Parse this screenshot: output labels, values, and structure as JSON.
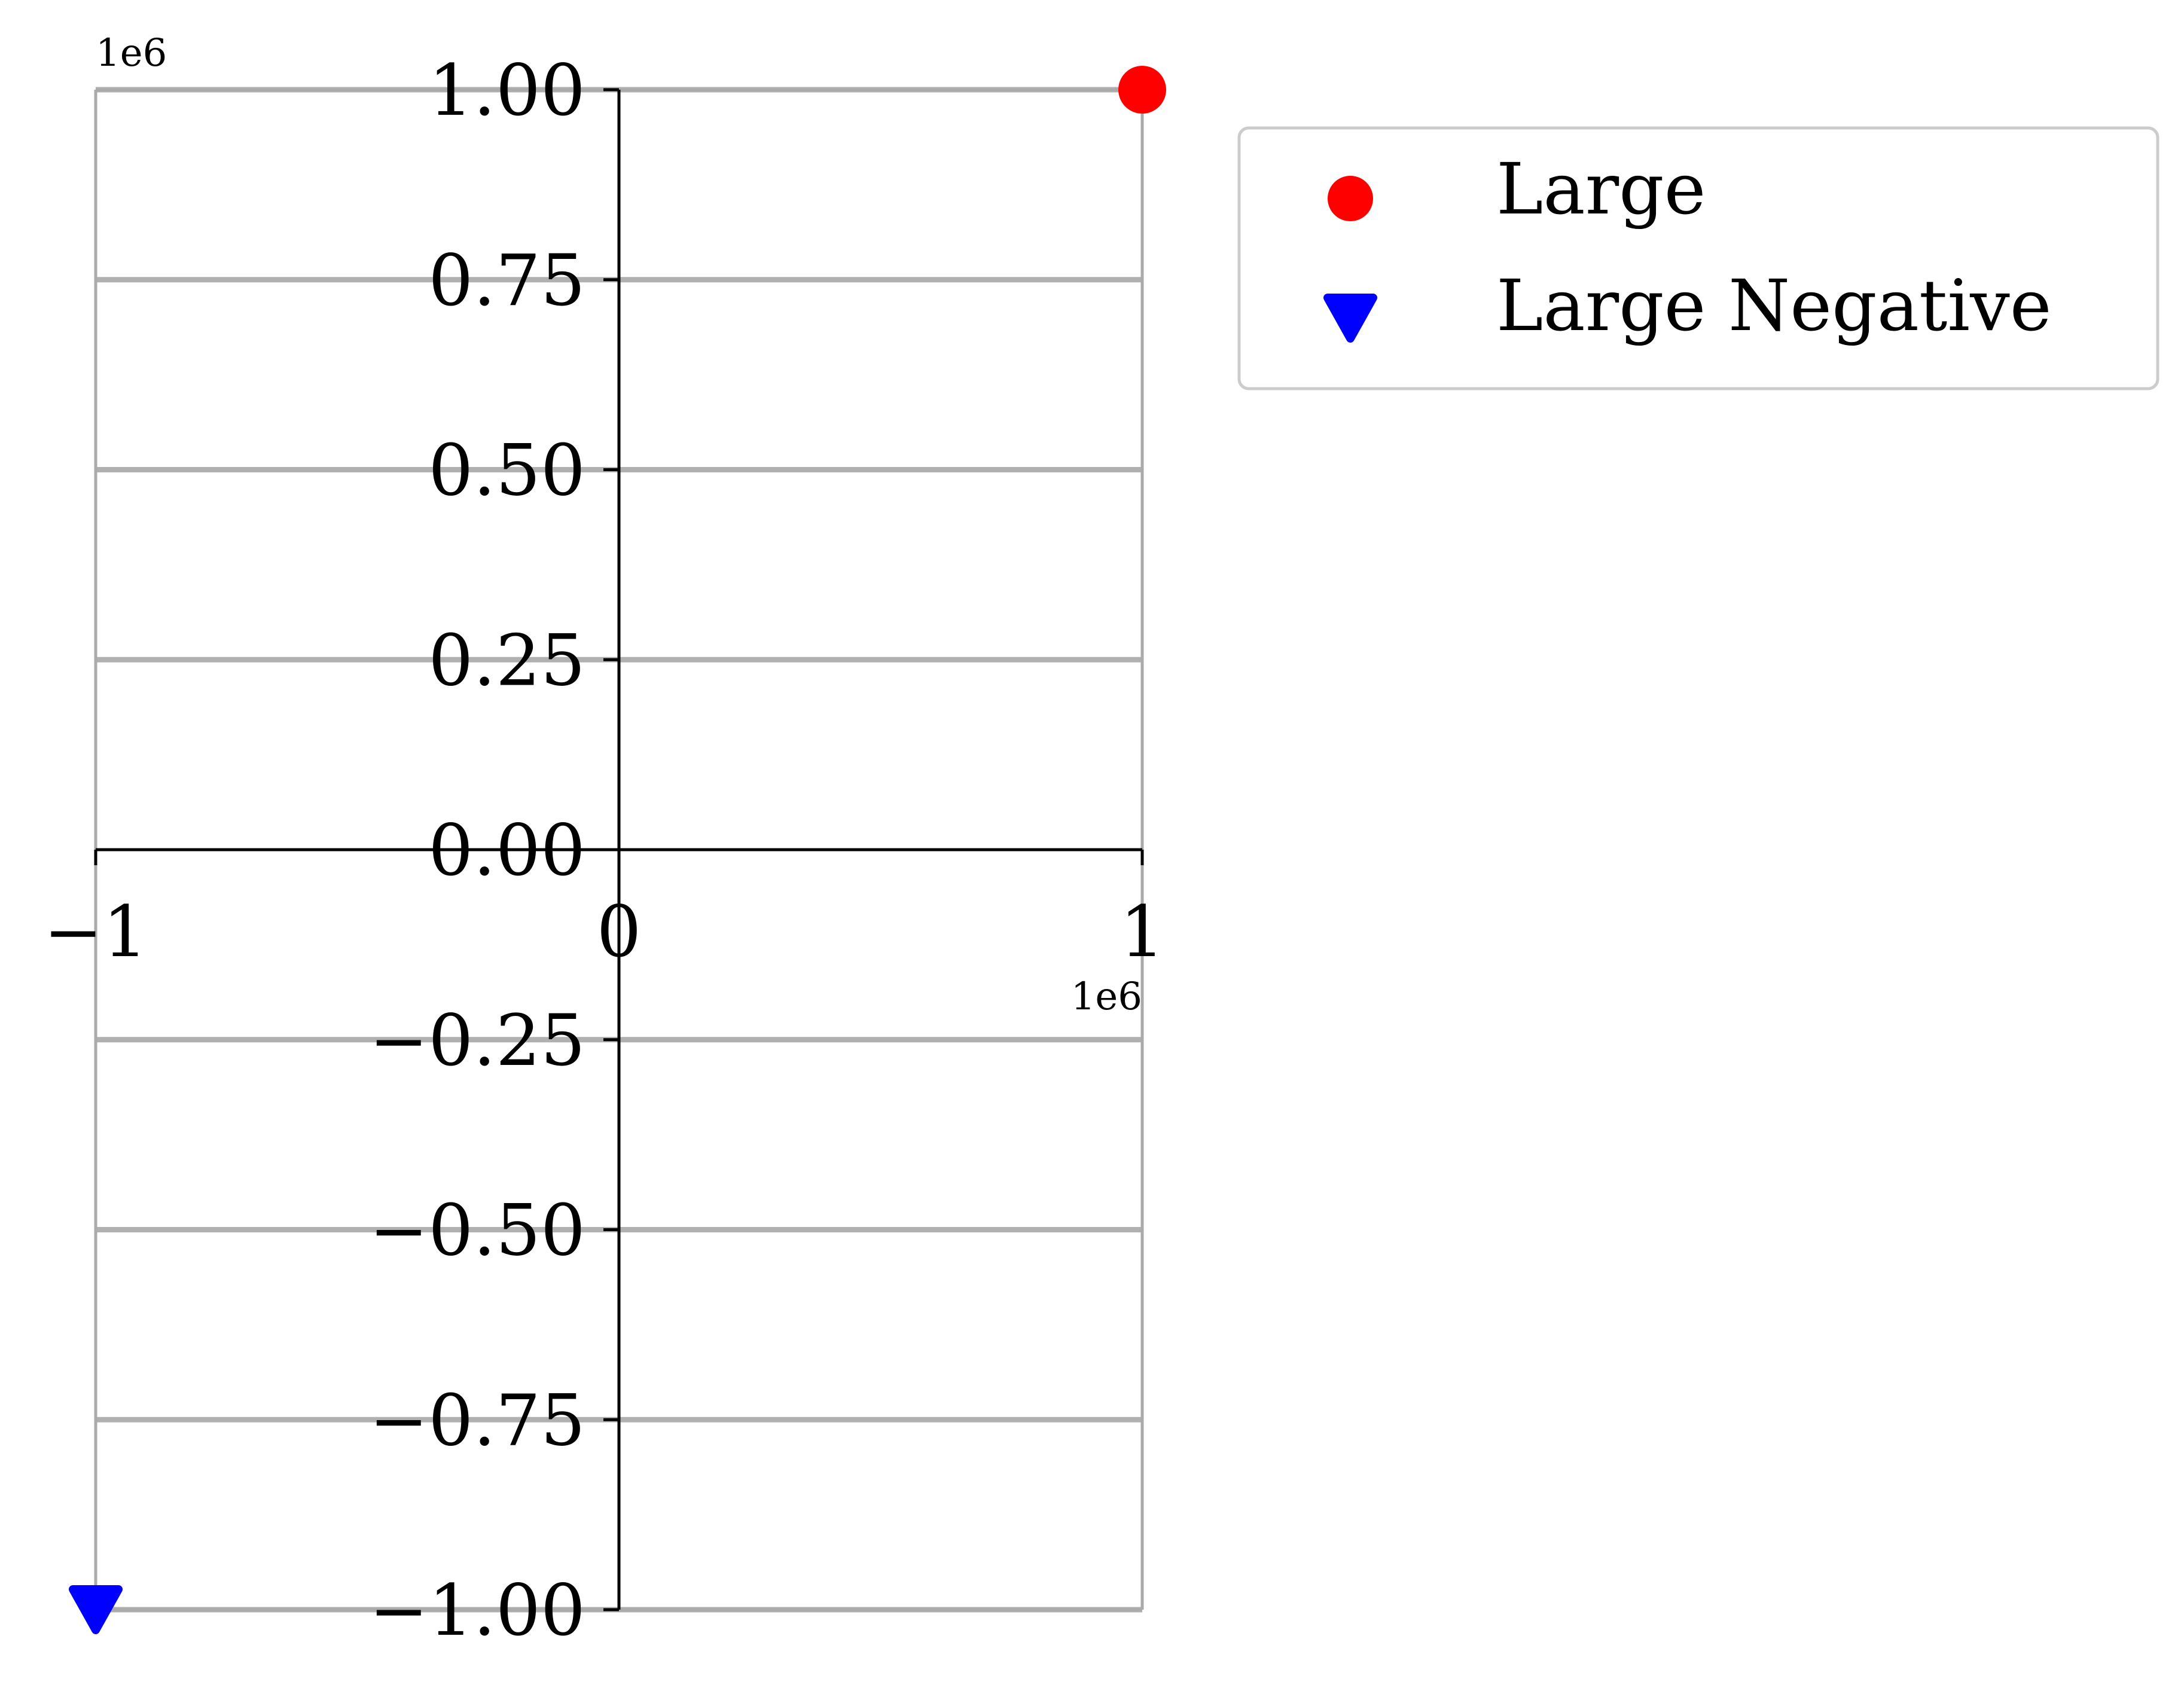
{
  "chart_data": {
    "type": "scatter",
    "x_offset_label": "1e6",
    "y_offset_label": "1e6",
    "xlim": [
      -1,
      1
    ],
    "ylim": [
      -1,
      1
    ],
    "x_ticks": [
      -1,
      0,
      1
    ],
    "x_tick_labels": [
      "−1",
      "0",
      "1"
    ],
    "y_ticks": [
      1.0,
      0.75,
      0.5,
      0.25,
      0.0,
      -0.25,
      -0.5,
      -0.75,
      -1.0
    ],
    "y_tick_labels": [
      "1.00",
      "0.75",
      "0.50",
      "0.25",
      "0.00",
      "−0.25",
      "−0.50",
      "−0.75",
      "−1.00"
    ],
    "grid": "horizontal",
    "legend_position": "outside-top-right",
    "series": [
      {
        "name": "Large",
        "marker": "circle",
        "color": "#ff0000",
        "points": [
          {
            "x": 1,
            "y": 1
          }
        ]
      },
      {
        "name": "Large Negative",
        "marker": "triangle-down",
        "color": "#0000ff",
        "points": [
          {
            "x": -1,
            "y": -1
          }
        ]
      }
    ],
    "colors": {
      "grid": "#b0b0b0",
      "frame": "#aaaaaa",
      "axis": "#000000",
      "legend_border": "#cccccc"
    }
  }
}
